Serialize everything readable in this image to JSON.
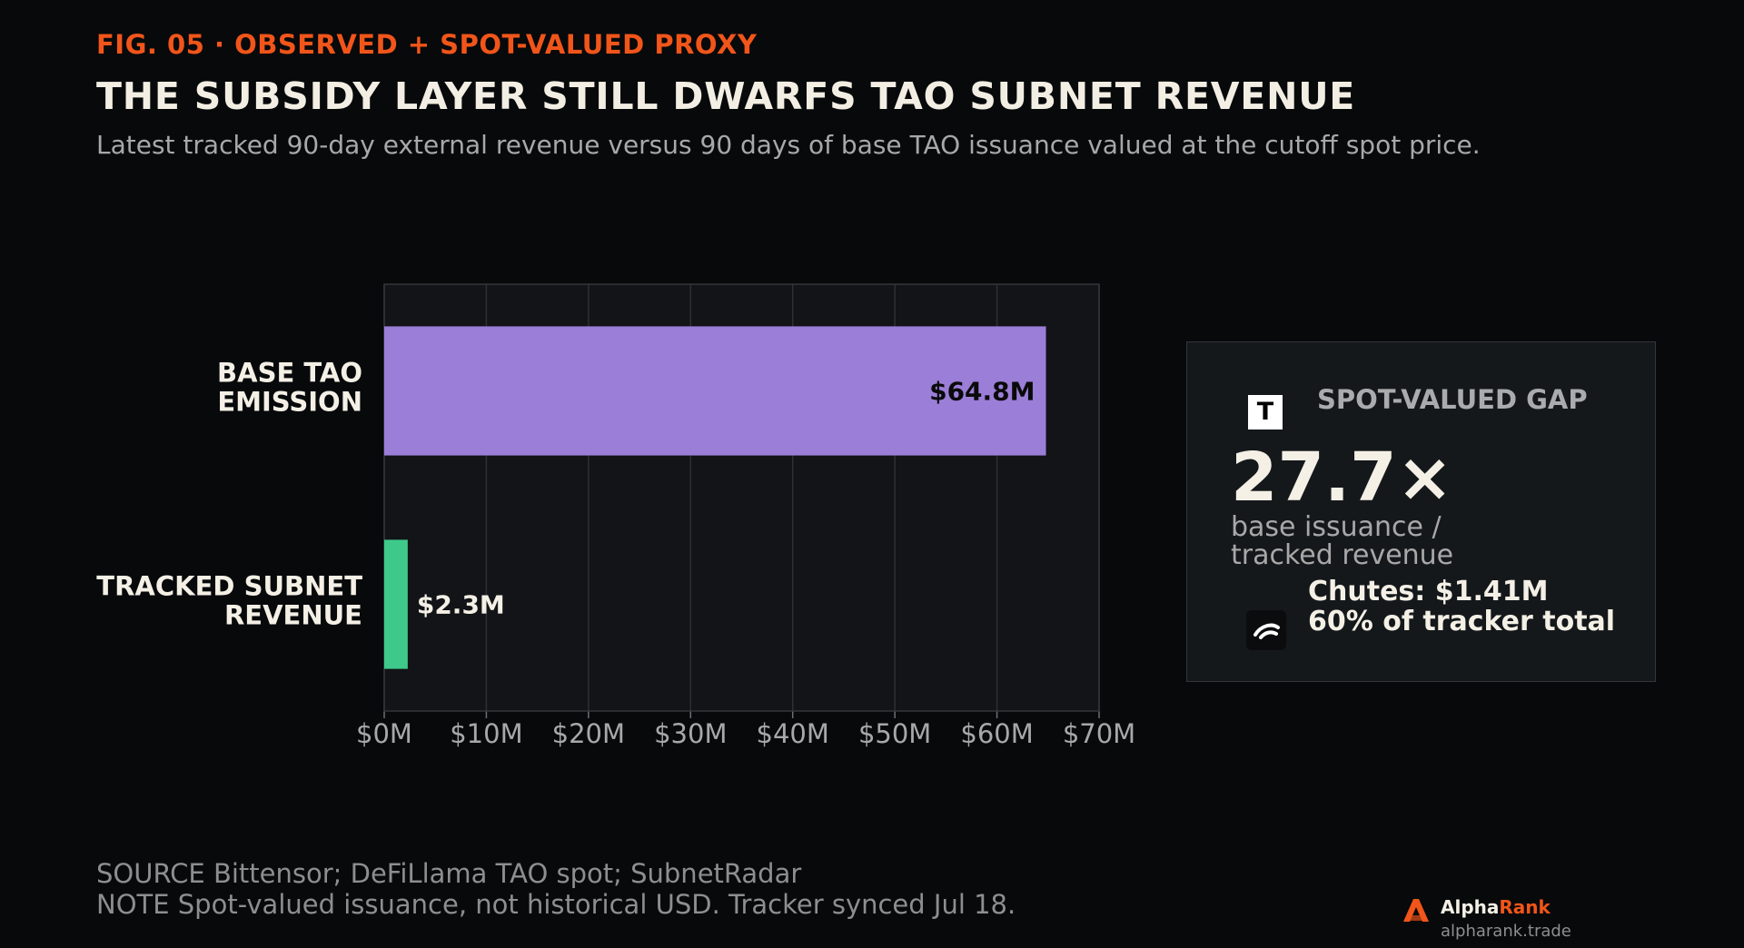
{
  "header": {
    "kicker": "FIG. 05  ·  OBSERVED + SPOT-VALUED PROXY",
    "title": "THE SUBSIDY LAYER STILL DWARFS TAO SUBNET REVENUE",
    "subtitle": "Latest tracked 90-day external revenue versus 90 days of base TAO issuance valued at the cutoff spot price."
  },
  "chart_data": {
    "type": "bar",
    "orientation": "horizontal",
    "categories": [
      [
        "BASE TAO",
        "EMISSION"
      ],
      [
        "TRACKED SUBNET",
        "REVENUE"
      ]
    ],
    "values": [
      64.8,
      2.3
    ],
    "data_labels": [
      "$64.8M",
      "$2.3M"
    ],
    "colors": [
      "#9b7ed8",
      "#3ec98a"
    ],
    "xlim": [
      0,
      70
    ],
    "xticks": [
      0,
      10,
      20,
      30,
      40,
      50,
      60,
      70
    ],
    "xtick_labels": [
      "$0M",
      "$10M",
      "$20M",
      "$30M",
      "$40M",
      "$50M",
      "$60M",
      "$70M"
    ],
    "grid": "vertical",
    "plot_background": "#121417",
    "grid_color": "#2d3034"
  },
  "panel": {
    "label": "SPOT-VALUED GAP",
    "icon": "tao-logo-icon",
    "icon_glyph": "T",
    "value": "27.7×",
    "desc_line1": "base issuance /",
    "desc_line2": "tracked revenue",
    "detail_icon": "chutes-logo-icon",
    "detail_line1": "Chutes: $1.41M",
    "detail_line2": "60% of tracker total"
  },
  "footer": {
    "source": "SOURCE  Bittensor; DeFiLlama TAO spot; SubnetRadar",
    "note": "NOTE  Spot-valued issuance, not historical USD. Tracker synced Jul 18."
  },
  "brand": {
    "name_part1": "Alpha",
    "name_part2": "Rank",
    "url": "alpharank.trade",
    "accent_color": "#f1551a"
  }
}
